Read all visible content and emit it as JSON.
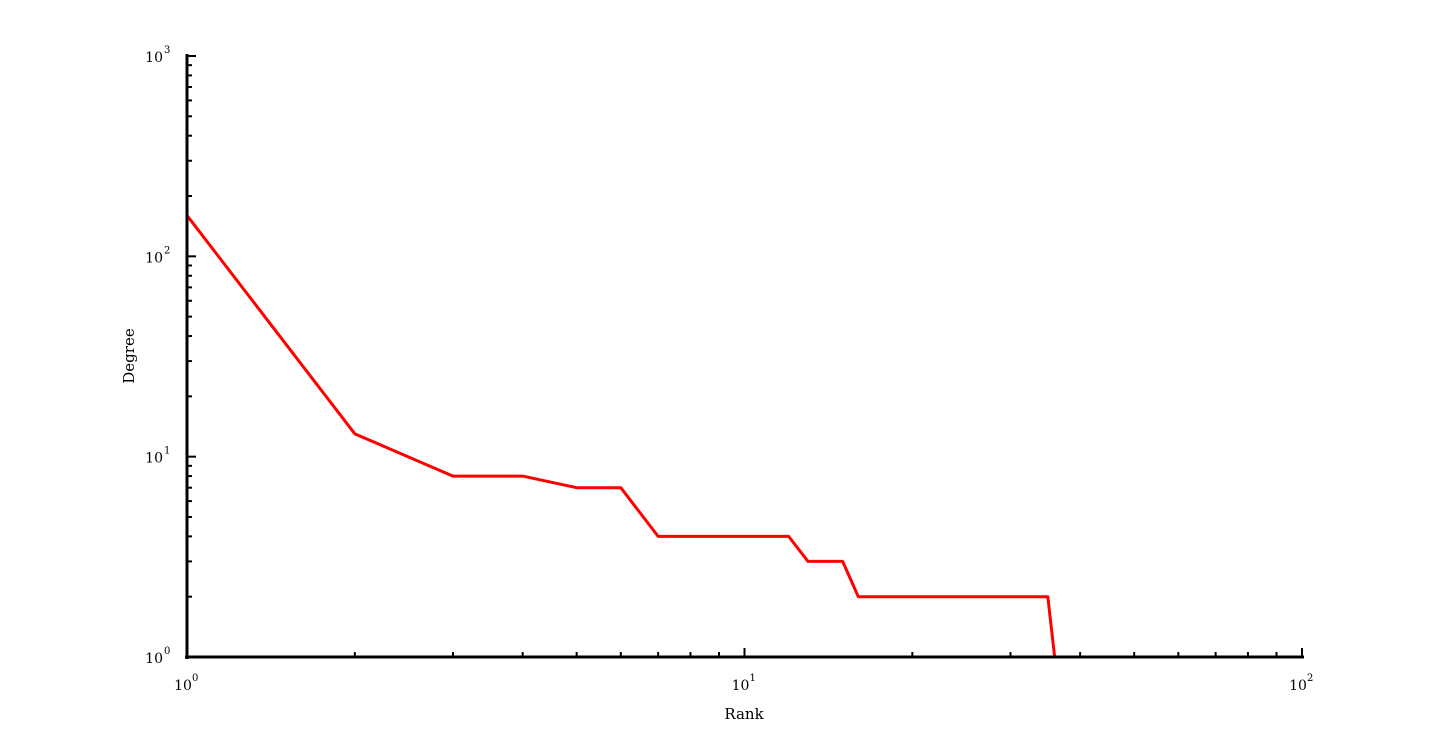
{
  "chart_data": {
    "type": "line",
    "xlabel": "Rank",
    "ylabel": "Degree",
    "x_scale": "log",
    "y_scale": "log",
    "xlim": [
      1,
      100
    ],
    "ylim": [
      1,
      1000
    ],
    "grid": false,
    "x_ticks": [
      {
        "value": 1,
        "base": "10",
        "exponent": "0"
      },
      {
        "value": 10,
        "base": "10",
        "exponent": "1"
      },
      {
        "value": 100,
        "base": "10",
        "exponent": "2"
      }
    ],
    "y_ticks": [
      {
        "value": 1,
        "base": "10",
        "exponent": "0"
      },
      {
        "value": 10,
        "base": "10",
        "exponent": "1"
      },
      {
        "value": 100,
        "base": "10",
        "exponent": "2"
      },
      {
        "value": 1000,
        "base": "10",
        "exponent": "3"
      }
    ],
    "series": [
      {
        "color": "#ff0000",
        "points": [
          [
            1,
            160
          ],
          [
            2,
            13
          ],
          [
            3,
            8
          ],
          [
            4,
            8
          ],
          [
            5,
            7
          ],
          [
            6,
            7
          ],
          [
            7,
            4
          ],
          [
            8,
            4
          ],
          [
            9,
            4
          ],
          [
            10,
            4
          ],
          [
            11,
            4
          ],
          [
            12,
            4
          ],
          [
            13,
            3
          ],
          [
            14,
            3
          ],
          [
            15,
            3
          ],
          [
            16,
            2
          ],
          [
            35,
            2
          ],
          [
            36,
            1
          ],
          [
            100,
            1
          ]
        ]
      }
    ]
  }
}
